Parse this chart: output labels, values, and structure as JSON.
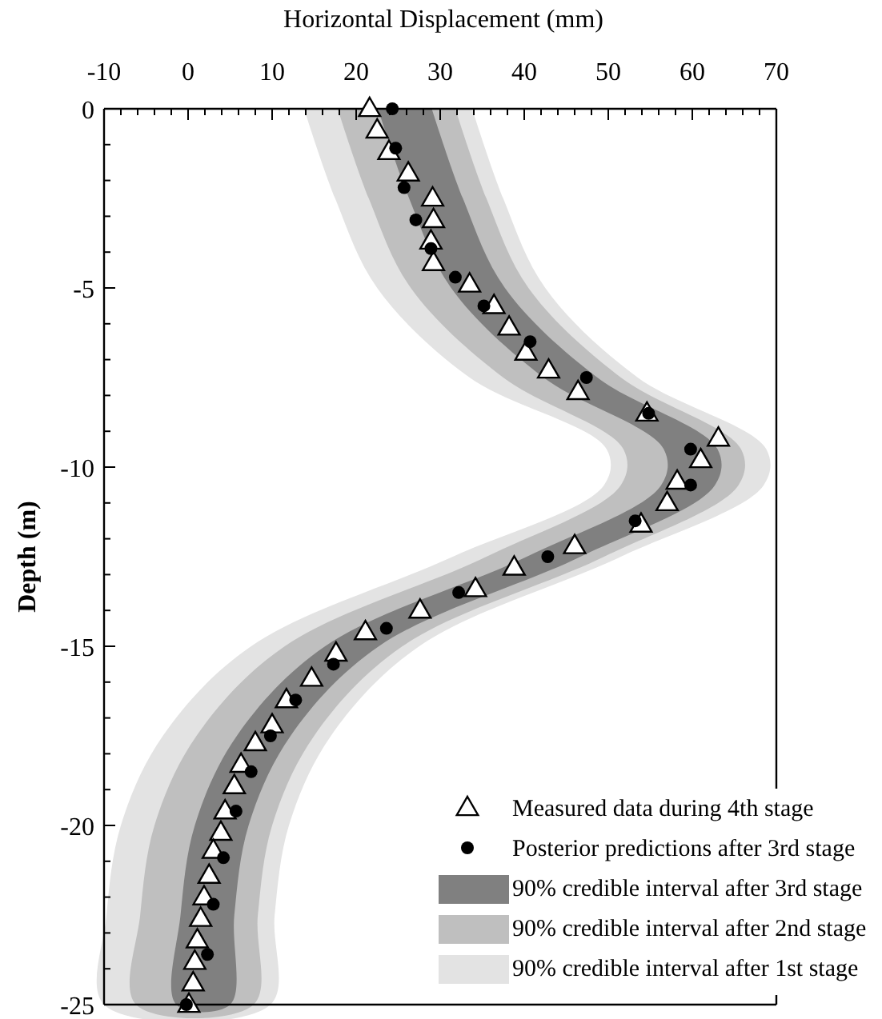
{
  "chart_data": {
    "type": "scatter",
    "orientation": "horizontal",
    "xlabel": "Horizontal Displacement (mm)",
    "ylabel": "Depth (m)",
    "xlim": [
      -10,
      70
    ],
    "xticks": [
      -10,
      {
        "value": -8,
        "label": null
      },
      {
        "value": -6,
        "label": null
      },
      {
        "value": -4,
        "label": null
      },
      {
        "value": -2,
        "label": null
      },
      0,
      {
        "value": 2,
        "label": null
      },
      {
        "value": 4,
        "label": null
      },
      {
        "value": 6,
        "label": null
      },
      {
        "value": 8,
        "label": null
      },
      10,
      {
        "value": 12,
        "label": null
      },
      {
        "value": 14,
        "label": null
      },
      {
        "value": 16,
        "label": null
      },
      {
        "value": 18,
        "label": null
      },
      20,
      {
        "value": 22,
        "label": null
      },
      {
        "value": 24,
        "label": null
      },
      {
        "value": 26,
        "label": null
      },
      {
        "value": 28,
        "label": null
      },
      30,
      {
        "value": 32,
        "label": null
      },
      {
        "value": 34,
        "label": null
      },
      {
        "value": 36,
        "label": null
      },
      {
        "value": 38,
        "label": null
      },
      40,
      {
        "value": 42,
        "label": null
      },
      {
        "value": 44,
        "label": null
      },
      {
        "value": 46,
        "label": null
      },
      {
        "value": 48,
        "label": null
      },
      50,
      {
        "value": 52,
        "label": null
      },
      {
        "value": 54,
        "label": null
      },
      {
        "value": 56,
        "label": null
      },
      {
        "value": 58,
        "label": null
      },
      60,
      {
        "value": 62,
        "label": null
      },
      {
        "value": 64,
        "label": null
      },
      {
        "value": 66,
        "label": null
      },
      {
        "value": 68,
        "label": null
      },
      70
    ],
    "ylim": [
      -25,
      0
    ],
    "yticks": [
      0,
      {
        "value": -1,
        "label": null
      },
      {
        "value": -2,
        "label": null
      },
      {
        "value": -3,
        "label": null
      },
      {
        "value": -4,
        "label": null
      },
      -5,
      {
        "value": -6,
        "label": null
      },
      {
        "value": -7,
        "label": null
      },
      {
        "value": -8,
        "label": null
      },
      {
        "value": -9,
        "label": null
      },
      -10,
      {
        "value": -11,
        "label": null
      },
      {
        "value": -12,
        "label": null
      },
      {
        "value": -13,
        "label": null
      },
      {
        "value": -14,
        "label": null
      },
      -15,
      {
        "value": -16,
        "label": null
      },
      {
        "value": -17,
        "label": null
      },
      {
        "value": -18,
        "label": null
      },
      {
        "value": -19,
        "label": null
      },
      -20,
      {
        "value": -21,
        "label": null
      },
      {
        "value": -22,
        "label": null
      },
      {
        "value": -23,
        "label": null
      },
      {
        "value": -24,
        "label": null
      },
      -25
    ],
    "grid": false,
    "legend": "bottom right",
    "series": [
      {
        "name": "Measured data during 4th stage",
        "marker": "triangle",
        "color": "#000000",
        "x": [
          0,
          -0.6,
          -1.2,
          -1.8,
          -2.5,
          -3.1,
          -3.7,
          -4.3,
          -4.9,
          -5.5,
          -6.1,
          -6.8,
          -7.3,
          -7.9,
          -8.5,
          -9.2,
          -9.8,
          -10.4,
          -11.0,
          -11.6,
          -12.2,
          -12.8,
          -13.4,
          -14.0,
          -14.6,
          -15.2,
          -15.9,
          -16.5,
          -17.2,
          -17.7,
          -18.3,
          -18.9,
          -19.6,
          -20.2,
          -20.7,
          -21.4,
          -22.0,
          -22.6,
          -23.2,
          -23.8,
          -24.4,
          -25.0
        ],
        "values": [
          21.6,
          22.5,
          23.9,
          26.2,
          29.1,
          29.2,
          28.9,
          29.2,
          33.5,
          36.4,
          38.2,
          40.2,
          42.9,
          46.4,
          54.6,
          63.1,
          61.0,
          58.2,
          57.0,
          53.9,
          46.0,
          38.8,
          34.2,
          27.6,
          21.1,
          17.6,
          14.7,
          11.7,
          10.0,
          8.0,
          6.3,
          5.5,
          4.4,
          3.9,
          3.0,
          2.5,
          1.9,
          1.5,
          1.1,
          0.8,
          0.6,
          0.1
        ]
      },
      {
        "name": "Posterior predictions after 3rd stage",
        "marker": "circle",
        "color": "#000000",
        "x": [
          0,
          -1.1,
          -2.2,
          -3.1,
          -3.9,
          -4.7,
          -5.5,
          -6.5,
          -7.5,
          -8.5,
          -9.5,
          -10.5,
          -11.5,
          -12.5,
          -13.5,
          -14.5,
          -15.5,
          -16.5,
          -17.5,
          -18.5,
          -19.6,
          -20.9,
          -22.2,
          -23.6,
          -25.0
        ],
        "values": [
          24.3,
          24.7,
          25.7,
          27.1,
          28.9,
          31.8,
          35.2,
          40.7,
          47.4,
          54.8,
          59.8,
          59.8,
          53.2,
          42.8,
          32.2,
          23.6,
          17.3,
          12.8,
          9.8,
          7.5,
          5.7,
          4.2,
          3.0,
          2.3,
          -0.2
        ]
      },
      {
        "name": "90% credible interval after 3rd stage",
        "type": "area",
        "color": "#808080",
        "x": [
          0,
          -2.5,
          -5,
          -7.5,
          -9.5,
          -10.5,
          -12.5,
          -15,
          -17.5,
          -20,
          -22.5,
          -25,
          -25,
          -22.5,
          -20,
          -17.5,
          -15,
          -12.5,
          -10.5,
          -9.5,
          -7.5,
          -5,
          -2.5,
          0
        ],
        "values": [
          29.0,
          32.7,
          37.7,
          48.7,
          63.0,
          62.7,
          46.7,
          22.7,
          12.2,
          7.2,
          5.5,
          5.0,
          -1.4,
          -0.9,
          0.8,
          5.8,
          16.3,
          40.3,
          56.3,
          56.6,
          42.3,
          31.3,
          26.3,
          22.6
        ]
      },
      {
        "name": "90% credible interval after 2nd stage",
        "type": "area",
        "color": "#bfbfbf",
        "x": [
          0,
          -2.5,
          -5,
          -7.5,
          -9.5,
          -10.5,
          -12.5,
          -15,
          -17.5,
          -20,
          -22.5,
          -25,
          -25,
          -22.5,
          -20,
          -17.5,
          -15,
          -12.5,
          -10.5,
          -9.5,
          -7.5,
          -5,
          -2.5,
          0
        ],
        "values": [
          31.8,
          35.5,
          40.5,
          51.5,
          65.8,
          65.5,
          49.5,
          25.5,
          15.0,
          10.0,
          8.3,
          7.8,
          -6.2,
          -5.7,
          -4.0,
          1.0,
          11.5,
          35.5,
          51.5,
          51.8,
          37.5,
          26.5,
          21.5,
          17.8
        ]
      },
      {
        "name": "90% credible interval after 1st stage",
        "type": "area",
        "color": "#e3e3e3",
        "x": [
          0,
          -2.5,
          -5,
          -7.5,
          -9.5,
          -10.5,
          -12.5,
          -15,
          -17.5,
          -20,
          -22.5,
          -25,
          -25,
          -22.5,
          -20,
          -17.5,
          -15,
          -12.5,
          -10.5,
          -9.5,
          -7.5,
          -5,
          -2.5,
          0
        ],
        "values": [
          33.8,
          37.5,
          42.5,
          53.5,
          68.8,
          68.5,
          51.5,
          27.5,
          17.0,
          12.0,
          10.3,
          9.8,
          -10.0,
          -9.7,
          -8.0,
          -3.0,
          7.5,
          31.5,
          49.5,
          49.8,
          33.5,
          22.5,
          17.5,
          13.8
        ]
      }
    ]
  }
}
